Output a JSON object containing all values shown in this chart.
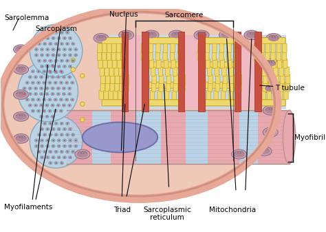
{
  "bg_color": "#ffffff",
  "sarcolemma_color": "#f0b8a8",
  "sarcoplasm_color": "#f0c8b8",
  "sarcoplasm_inner": "#edc0ae",
  "nucleus_color": "#9898cc",
  "nucleus_edge": "#7070aa",
  "myofibril_blue": "#b8d4e8",
  "myofibril_pink": "#e8a8b0",
  "myofibril_stripe": "#c8d8e8",
  "sr_fill": "#f0d870",
  "sr_edge": "#c8a820",
  "sr_bg_blue": "#c8dce8",
  "sr_bg_pink": "#f0b8c0",
  "t_tubule_color": "#c85040",
  "t_tubule_edge": "#a03020",
  "mito_fill": "#c8a0b8",
  "mito_edge": "#907080",
  "mito_inner": "#b08898",
  "bundle_blue": "#b8d4e8",
  "bundle_edge": "#88aac0",
  "dot_red": "#c85050",
  "dot_blue": "#90b8d0",
  "edge_pink": "#e8a898",
  "labels": {
    "sarcolemma": "Sarcolemma",
    "nucleus": "Nucleus",
    "sarcoplasm": "Sarcoplasm",
    "sarcomere": "Sarcomere",
    "myofibril": "Myofibril",
    "t_tubule": "T tubule",
    "myofilaments": "Myofilaments",
    "triad": "Triad",
    "sr": "Sarcoplasmic\nreticulum",
    "mitochondria": "Mitochondria"
  }
}
